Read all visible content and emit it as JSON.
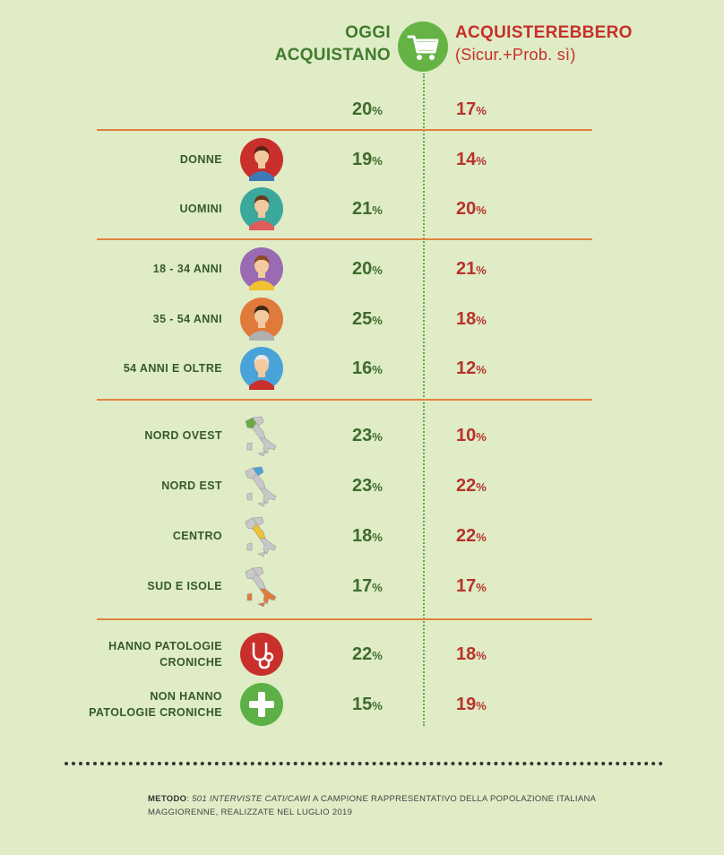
{
  "header": {
    "left_line1": "OGGI",
    "left_line2": "ACQUISTANO",
    "right_line1": "ACQUISTEREBBERO",
    "right_line2": "(Sicur.+Prob.  sì)",
    "cart_icon": "shopping-cart-icon"
  },
  "colors": {
    "background": "#dfecc6",
    "green": "#3f7b2c",
    "red": "#c6302a",
    "separator": "#e3823d"
  },
  "chart_data": {
    "type": "table",
    "columns": [
      "OGGI ACQUISTANO",
      "ACQUISTEREBBERO (Sicur.+Prob.  sì)"
    ],
    "unit": "%",
    "total": {
      "oggi": 20,
      "acquisterebbero": 17
    },
    "rows": [
      {
        "label": "DONNE",
        "icon": "woman-avatar-icon",
        "oggi": 19,
        "acquisterebbero": 14
      },
      {
        "label": "UOMINI",
        "icon": "man-avatar-icon",
        "oggi": 21,
        "acquisterebbero": 20
      },
      {
        "label": "18 - 34 ANNI",
        "icon": "young-person-icon",
        "oggi": 20,
        "acquisterebbero": 21
      },
      {
        "label": "35 - 54 ANNI",
        "icon": "middle-aged-man-icon",
        "oggi": 25,
        "acquisterebbero": 18
      },
      {
        "label": "54 ANNI E OLTRE",
        "icon": "elderly-man-icon",
        "oggi": 16,
        "acquisterebbero": 12
      },
      {
        "label": "NORD OVEST",
        "icon": "italy-map-northwest-icon",
        "oggi": 23,
        "acquisterebbero": 10
      },
      {
        "label": "NORD EST",
        "icon": "italy-map-northeast-icon",
        "oggi": 23,
        "acquisterebbero": 22
      },
      {
        "label": "CENTRO",
        "icon": "italy-map-center-icon",
        "oggi": 18,
        "acquisterebbero": 22
      },
      {
        "label": "SUD E ISOLE",
        "icon": "italy-map-south-icon",
        "oggi": 17,
        "acquisterebbero": 17
      },
      {
        "label": "HANNO PATOLOGIE\nCRONICHE",
        "icon": "stethoscope-icon",
        "oggi": 22,
        "acquisterebbero": 18
      },
      {
        "label": "NON HANNO\nPATOLOGIE CRONICHE",
        "icon": "plus-cross-icon",
        "oggi": 15,
        "acquisterebbero": 19
      }
    ]
  },
  "footnote": {
    "metodo_label": "METODO",
    "metodo_sep": ": ",
    "metodo_italic": "501 INTERVISTE CATI/CAWI",
    "metodo_rest": " A CAMPIONE RAPPRESENTATIVO DELLA POPOLAZIONE ITALIANA MAGGIORENNE, REALIZZATE NEL LUGLIO 2019"
  }
}
